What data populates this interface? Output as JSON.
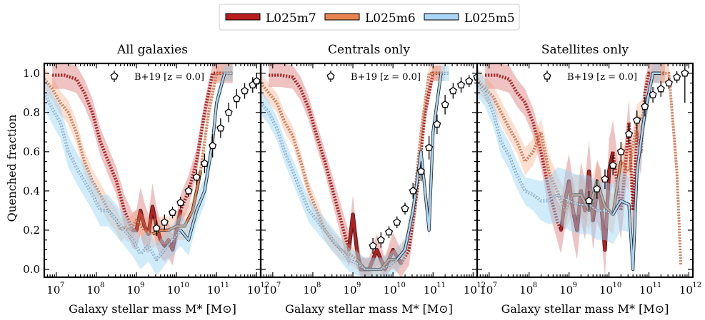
{
  "legend": {
    "items": [
      {
        "label": "L025m7",
        "color": "#b81e1e"
      },
      {
        "label": "L025m6",
        "color": "#e98450"
      },
      {
        "label": "L025m5",
        "color": "#a9d6f5"
      }
    ]
  },
  "obs_label": "B+19 [z = 0.0]",
  "ylabel": "Quenched fraction",
  "chart_data": [
    {
      "type": "line",
      "title": "All galaxies",
      "xlabel": "Galaxy stellar mass M* [M⊙]",
      "ylabel": "Quenched fraction",
      "xscale": "log",
      "xlim": [
        6.7,
        12.1
      ],
      "ylim": [
        -0.04,
        1.05
      ],
      "xticks": [
        "10^7",
        "10^8",
        "10^9",
        "10^10",
        "10^11",
        "10^12"
      ],
      "yticks": [
        "0.0",
        "0.2",
        "0.4",
        "0.6",
        "0.8",
        "1.0"
      ],
      "series": [
        {
          "name": "L025m7",
          "resolved_from": 8.8,
          "x": [
            6.9,
            7.2,
            7.5,
            7.7,
            7.9,
            8.1,
            8.3,
            8.5,
            8.7,
            8.9,
            9.0,
            9.1,
            9.2,
            9.3,
            9.4,
            9.5,
            9.6,
            9.7,
            9.8,
            9.9,
            10.0,
            10.1,
            10.3,
            10.5,
            10.7,
            10.9,
            11.0,
            11.2,
            11.4
          ],
          "y": [
            0.99,
            0.99,
            0.97,
            0.9,
            0.8,
            0.65,
            0.55,
            0.45,
            0.3,
            0.2,
            0.2,
            0.3,
            0.22,
            0.18,
            0.32,
            0.22,
            0.15,
            0.12,
            0.15,
            0.1,
            0.2,
            0.3,
            0.4,
            0.55,
            0.8,
            1.0,
            1.0,
            1.0,
            1.0
          ],
          "band": [
            0.07,
            0.07,
            0.07,
            0.07,
            0.07,
            0.07,
            0.07,
            0.07,
            0.08,
            0.09,
            0.1,
            0.12,
            0.12,
            0.1,
            0.12,
            0.1,
            0.09,
            0.08,
            0.09,
            0.08,
            0.08,
            0.08,
            0.08,
            0.07,
            0.06,
            0.05,
            0.05,
            0.05,
            0.05
          ]
        },
        {
          "name": "L025m6",
          "resolved_from": 9.3,
          "x": [
            6.7,
            6.9,
            7.1,
            7.3,
            7.5,
            7.7,
            7.9,
            8.1,
            8.3,
            8.5,
            8.6,
            8.7,
            8.8,
            8.9,
            9.0,
            9.2,
            9.4,
            9.6,
            9.8,
            10.0,
            10.2,
            10.4,
            10.6,
            10.8,
            11.0,
            11.2,
            11.4
          ],
          "y": [
            0.97,
            0.92,
            0.85,
            0.8,
            0.7,
            0.55,
            0.45,
            0.38,
            0.3,
            0.25,
            0.2,
            0.22,
            0.2,
            0.22,
            0.25,
            0.2,
            0.18,
            0.2,
            0.2,
            0.22,
            0.22,
            0.3,
            0.5,
            0.8,
            1.0,
            1.0,
            1.0
          ],
          "band": [
            0.06,
            0.06,
            0.06,
            0.06,
            0.06,
            0.06,
            0.06,
            0.06,
            0.06,
            0.06,
            0.06,
            0.06,
            0.06,
            0.06,
            0.06,
            0.07,
            0.07,
            0.07,
            0.07,
            0.07,
            0.07,
            0.06,
            0.06,
            0.05,
            0.04,
            0.04,
            0.04
          ]
        },
        {
          "name": "L025m5",
          "resolved_from": 10.0,
          "x": [
            6.7,
            6.9,
            7.1,
            7.3,
            7.5,
            7.7,
            7.9,
            8.1,
            8.3,
            8.5,
            8.7,
            8.9,
            9.1,
            9.3,
            9.5,
            9.7,
            9.9,
            10.1,
            10.3,
            10.5,
            10.7,
            10.9,
            11.0,
            11.2,
            11.4
          ],
          "y": [
            0.9,
            0.82,
            0.75,
            0.6,
            0.52,
            0.45,
            0.38,
            0.3,
            0.3,
            0.25,
            0.2,
            0.15,
            0.08,
            0.12,
            0.05,
            0.1,
            0.15,
            0.2,
            0.15,
            0.3,
            0.4,
            0.65,
            0.85,
            1.0,
            1.0
          ],
          "band": [
            0.08,
            0.08,
            0.08,
            0.08,
            0.08,
            0.08,
            0.08,
            0.08,
            0.08,
            0.08,
            0.08,
            0.08,
            0.08,
            0.08,
            0.08,
            0.08,
            0.08,
            0.08,
            0.08,
            0.07,
            0.07,
            0.06,
            0.05,
            0.04,
            0.04
          ]
        }
      ],
      "observations": {
        "name": "B+19 [z = 0.0]",
        "x": [
          9.5,
          9.7,
          9.9,
          10.1,
          10.3,
          10.5,
          10.7,
          10.9,
          11.1,
          11.3,
          11.5,
          11.7,
          11.9,
          12.0
        ],
        "y": [
          0.21,
          0.24,
          0.29,
          0.34,
          0.4,
          0.47,
          0.54,
          0.63,
          0.72,
          0.8,
          0.87,
          0.91,
          0.94,
          0.96
        ],
        "err": [
          0.04,
          0.04,
          0.03,
          0.03,
          0.03,
          0.04,
          0.05,
          0.06,
          0.05,
          0.05,
          0.05,
          0.04,
          0.04,
          0.04
        ]
      }
    },
    {
      "type": "line",
      "title": "Centrals only",
      "xlabel": "Galaxy stellar mass M* [M⊙]",
      "xscale": "log",
      "xlim": [
        6.7,
        12.1
      ],
      "ylim": [
        -0.04,
        1.05
      ],
      "xticks": [
        "10^7",
        "10^8",
        "10^9",
        "10^10",
        "10^11",
        "10^12"
      ],
      "series": [
        {
          "name": "L025m7",
          "resolved_from": 8.9,
          "x": [
            6.9,
            7.2,
            7.5,
            7.7,
            7.9,
            8.1,
            8.3,
            8.5,
            8.7,
            8.9,
            9.0,
            9.1,
            9.2,
            9.4,
            9.6,
            9.8,
            10.0,
            10.2,
            10.4,
            10.6,
            10.8,
            11.0,
            11.2
          ],
          "y": [
            0.99,
            0.99,
            0.98,
            0.92,
            0.82,
            0.68,
            0.55,
            0.4,
            0.25,
            0.1,
            0.28,
            0.1,
            0.0,
            0.0,
            0.1,
            0.0,
            0.1,
            0.03,
            0.1,
            0.4,
            0.8,
            1.0,
            1.0
          ],
          "band": [
            0.06,
            0.06,
            0.06,
            0.06,
            0.06,
            0.06,
            0.06,
            0.07,
            0.08,
            0.09,
            0.1,
            0.09,
            0.06,
            0.06,
            0.08,
            0.06,
            0.09,
            0.07,
            0.08,
            0.08,
            0.06,
            0.04,
            0.04
          ]
        },
        {
          "name": "L025m6",
          "resolved_from": 9.1,
          "x": [
            6.7,
            6.9,
            7.1,
            7.3,
            7.5,
            7.7,
            7.9,
            8.1,
            8.3,
            8.5,
            8.7,
            8.9,
            9.1,
            9.3,
            9.5,
            9.7,
            9.9,
            10.1,
            10.3,
            10.5,
            10.7,
            10.9,
            11.1,
            11.3
          ],
          "y": [
            0.95,
            0.9,
            0.85,
            0.75,
            0.68,
            0.55,
            0.4,
            0.3,
            0.2,
            0.14,
            0.1,
            0.08,
            0.05,
            0.0,
            0.0,
            0.0,
            0.05,
            0.05,
            0.1,
            0.3,
            0.7,
            1.0,
            1.0,
            1.0
          ],
          "band": [
            0.05,
            0.05,
            0.05,
            0.05,
            0.05,
            0.05,
            0.05,
            0.05,
            0.05,
            0.05,
            0.05,
            0.05,
            0.05,
            0.05,
            0.05,
            0.05,
            0.05,
            0.05,
            0.06,
            0.06,
            0.06,
            0.04,
            0.04,
            0.04
          ]
        },
        {
          "name": "L025m5",
          "resolved_from": 10.0,
          "x": [
            6.7,
            6.9,
            7.1,
            7.3,
            7.5,
            7.7,
            7.9,
            8.1,
            8.3,
            8.5,
            8.7,
            8.9,
            9.1,
            9.3,
            9.5,
            9.7,
            9.9,
            10.1,
            10.3,
            10.5,
            10.7,
            10.9,
            11.0,
            11.2,
            11.4
          ],
          "y": [
            0.85,
            0.8,
            0.72,
            0.6,
            0.5,
            0.4,
            0.3,
            0.25,
            0.2,
            0.15,
            0.1,
            0.05,
            0.03,
            0.0,
            0.0,
            0.0,
            0.02,
            0.05,
            0.1,
            0.3,
            0.6,
            0.2,
            0.7,
            1.0,
            1.0
          ],
          "band": [
            0.06,
            0.06,
            0.06,
            0.06,
            0.06,
            0.06,
            0.06,
            0.06,
            0.06,
            0.06,
            0.06,
            0.06,
            0.06,
            0.06,
            0.06,
            0.06,
            0.06,
            0.06,
            0.06,
            0.06,
            0.05,
            0.05,
            0.05,
            0.04,
            0.04
          ]
        }
      ],
      "observations": {
        "name": "B+19 [z = 0.0]",
        "x": [
          9.5,
          9.7,
          9.9,
          10.1,
          10.3,
          10.5,
          10.7,
          10.9,
          11.1,
          11.3,
          11.5,
          11.7,
          11.9,
          12.1
        ],
        "y": [
          0.12,
          0.15,
          0.19,
          0.24,
          0.31,
          0.4,
          0.5,
          0.62,
          0.74,
          0.84,
          0.91,
          0.94,
          0.96,
          0.98
        ],
        "err": [
          0.04,
          0.04,
          0.03,
          0.03,
          0.03,
          0.04,
          0.05,
          0.06,
          0.05,
          0.05,
          0.04,
          0.04,
          0.03,
          0.03
        ]
      }
    },
    {
      "type": "line",
      "title": "Satellites only",
      "xlabel": "Galaxy stellar mass M* [M⊙]",
      "xscale": "log",
      "xlim": [
        6.7,
        12.1
      ],
      "ylim": [
        -0.04,
        1.05
      ],
      "xticks": [
        "10^7",
        "10^8",
        "10^9",
        "10^10",
        "10^11",
        "10^12"
      ],
      "series": [
        {
          "name": "L025m7",
          "resolved_from": 8.8,
          "x": [
            6.9,
            7.2,
            7.5,
            7.7,
            7.9,
            8.1,
            8.3,
            8.5,
            8.7,
            8.8,
            8.9,
            9.0,
            9.1,
            9.2,
            9.3,
            9.4,
            9.5,
            9.6,
            9.7,
            9.8,
            9.9,
            10.0,
            10.1,
            10.3,
            10.4,
            10.5,
            10.6,
            10.7,
            10.8,
            10.9,
            11.0,
            11.1,
            11.2,
            11.4
          ],
          "y": [
            0.99,
            0.99,
            0.97,
            0.9,
            0.85,
            0.75,
            0.6,
            0.4,
            0.25,
            0.2,
            0.35,
            0.45,
            0.3,
            0.2,
            0.4,
            0.3,
            0.5,
            0.25,
            0.4,
            0.35,
            0.1,
            0.5,
            0.6,
            0.3,
            0.5,
            0.75,
            0.3,
            0.7,
            0.6,
            0.9,
            1.0,
            1.0,
            1.0,
            1.0
          ],
          "band": [
            0.07,
            0.07,
            0.07,
            0.07,
            0.07,
            0.07,
            0.08,
            0.1,
            0.1,
            0.12,
            0.14,
            0.14,
            0.15,
            0.15,
            0.15,
            0.15,
            0.16,
            0.15,
            0.16,
            0.16,
            0.14,
            0.16,
            0.16,
            0.15,
            0.15,
            0.12,
            0.15,
            0.12,
            0.12,
            0.08,
            0.05,
            0.05,
            0.05,
            0.05
          ]
        },
        {
          "name": "L025m6",
          "resolved_from": 9.1,
          "x": [
            6.7,
            6.9,
            7.1,
            7.3,
            7.5,
            7.7,
            7.9,
            8.1,
            8.3,
            8.5,
            8.7,
            8.9,
            9.1,
            9.3,
            9.5,
            9.7,
            9.9,
            10.1,
            10.3,
            10.5,
            10.7,
            10.9,
            11.1,
            11.3,
            11.5,
            11.7,
            11.8
          ],
          "y": [
            0.97,
            0.92,
            0.88,
            0.8,
            0.72,
            0.65,
            0.55,
            0.6,
            0.7,
            0.5,
            0.4,
            0.3,
            0.38,
            0.38,
            0.3,
            0.45,
            0.32,
            0.28,
            0.55,
            0.5,
            0.75,
            0.8,
            1.0,
            1.0,
            1.0,
            0.5,
            0.02
          ],
          "band": [
            0.06,
            0.06,
            0.06,
            0.06,
            0.06,
            0.06,
            0.07,
            0.07,
            0.07,
            0.08,
            0.09,
            0.1,
            0.1,
            0.1,
            0.1,
            0.1,
            0.1,
            0.1,
            0.1,
            0.1,
            0.09,
            0.08,
            0.05,
            0.05,
            0.05,
            0.1,
            0.05
          ]
        },
        {
          "name": "L025m5",
          "resolved_from": 10.1,
          "x": [
            6.7,
            6.9,
            7.1,
            7.3,
            7.5,
            7.7,
            7.9,
            8.1,
            8.3,
            8.5,
            8.7,
            8.9,
            9.1,
            9.3,
            9.5,
            9.7,
            9.9,
            10.1,
            10.3,
            10.5,
            10.6,
            10.7,
            10.9,
            11.1,
            11.3
          ],
          "y": [
            0.95,
            0.9,
            0.8,
            0.65,
            0.58,
            0.48,
            0.4,
            0.38,
            0.35,
            0.35,
            0.38,
            0.36,
            0.34,
            0.33,
            0.33,
            0.3,
            0.3,
            0.28,
            0.35,
            0.33,
            0.0,
            0.5,
            0.8,
            1.0,
            1.0
          ],
          "band": [
            0.07,
            0.07,
            0.07,
            0.07,
            0.07,
            0.07,
            0.07,
            0.08,
            0.1,
            0.12,
            0.14,
            0.15,
            0.15,
            0.15,
            0.15,
            0.15,
            0.15,
            0.15,
            0.15,
            0.14,
            0.1,
            0.12,
            0.08,
            0.05,
            0.05
          ]
        }
      ],
      "observations": {
        "name": "B+19 [z = 0.0]",
        "x": [
          9.5,
          9.7,
          9.9,
          10.1,
          10.3,
          10.5,
          10.7,
          10.9,
          11.1,
          11.3,
          11.5,
          11.7,
          11.9
        ],
        "y": [
          0.35,
          0.41,
          0.46,
          0.53,
          0.6,
          0.69,
          0.76,
          0.83,
          0.89,
          0.92,
          0.95,
          0.98,
          1.0
        ],
        "err": [
          0.05,
          0.05,
          0.05,
          0.05,
          0.05,
          0.05,
          0.05,
          0.05,
          0.04,
          0.04,
          0.03,
          0.03,
          0.15
        ]
      }
    }
  ]
}
